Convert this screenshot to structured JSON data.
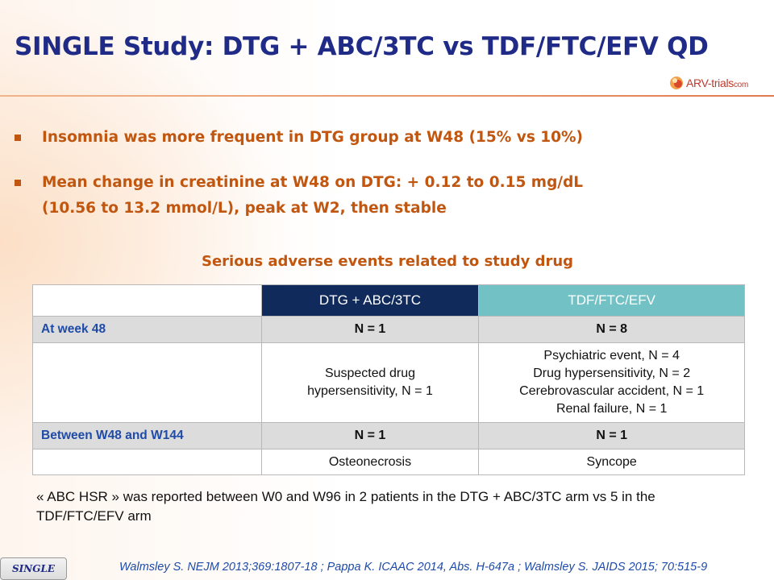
{
  "slide": {
    "title": "SINGLE Study: DTG + ABC/3TC vs TDF/FTC/EFV QD",
    "logo": {
      "icon": "arv-trials-logo-icon",
      "text_main": "ARV-trials",
      "text_suffix": "com"
    },
    "bullets": [
      {
        "text": "Insomnia was more frequent in DTG group at W48 (15% vs 10%)"
      },
      {
        "text": "Mean change in creatinine at W48 on DTG: + 0.12 to 0.15 mg/dL (10.56 to 13.2 mmol/L), peak at W2, then stable"
      }
    ],
    "table": {
      "title": "Serious adverse events related to study drug",
      "columns": [
        "",
        "DTG + ABC/3TC",
        "TDF/FTC/EFV"
      ],
      "rows": [
        {
          "label": "At week 48",
          "dtg": "N = 1",
          "tdf": "N = 8"
        },
        {
          "label": "",
          "dtg_lines": [
            "Suspected drug",
            "hypersensitivity, N = 1"
          ],
          "tdf_lines": [
            "Psychiatric event, N = 4",
            "Drug hypersensitivity, N = 2",
            "Cerebrovascular accident, N = 1",
            "Renal failure, N = 1"
          ]
        },
        {
          "label": "Between W48 and W144",
          "dtg": "N = 1",
          "tdf": "N = 1"
        },
        {
          "label": "",
          "dtg": "Osteonecrosis",
          "tdf": "Syncope"
        }
      ]
    },
    "note": "« ABC HSR » was reported between W0 and W96 in 2 patients in the DTG + ABC/3TC arm vs 5 in the TDF/FTC/EFV  arm",
    "footer": {
      "badge": "SINGLE",
      "reference": "Walmsley S. NEJM 2013;369:1807-18 ; Pappa K. ICAAC 2014, Abs. H-647a ; Walmsley S. JAIDS 2015; 70:515-9"
    },
    "colors": {
      "title": "#1f2b86",
      "bullet_text": "#c0560f",
      "dtg_header": "#102a5c",
      "tdf_header": "#72c1c4",
      "row_label": "#1f4ba8"
    }
  }
}
